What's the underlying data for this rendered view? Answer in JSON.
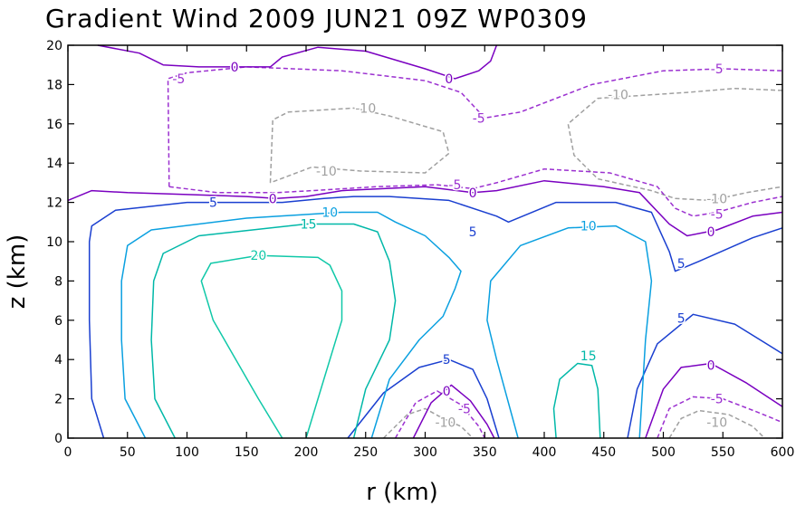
{
  "chart_data": {
    "type": "contour",
    "title": "Gradient Wind 2009 JUN21 09Z  WP0309",
    "xlabel": "r (km)",
    "ylabel": "z (km)",
    "xlim": [
      0,
      600
    ],
    "ylim": [
      0,
      20
    ],
    "xticks": [
      "0",
      "50",
      "100",
      "150",
      "200",
      "250",
      "300",
      "350",
      "400",
      "450",
      "500",
      "550",
      "600"
    ],
    "yticks": [
      "0",
      "2",
      "4",
      "6",
      "8",
      "10",
      "12",
      "14",
      "16",
      "18",
      "20"
    ],
    "contours": [
      {
        "level": -10,
        "color": "#a0a0a0",
        "dashed": true,
        "points": [
          [
            170,
            13.0
          ],
          [
            172,
            16.2
          ],
          [
            185,
            16.6
          ],
          [
            240,
            16.8
          ],
          [
            270,
            16.4
          ],
          [
            315,
            15.6
          ],
          [
            320,
            14.5
          ],
          [
            300,
            13.5
          ],
          [
            245,
            13.6
          ],
          [
            205,
            13.8
          ],
          [
            170,
            13.0
          ]
        ]
      },
      {
        "level": -10,
        "color": "#a0a0a0",
        "dashed": true,
        "points": [
          [
            600,
            17.7
          ],
          [
            560,
            17.8
          ],
          [
            520,
            17.6
          ],
          [
            445,
            17.3
          ],
          [
            420,
            16.0
          ],
          [
            425,
            14.4
          ],
          [
            445,
            13.2
          ],
          [
            490,
            12.6
          ],
          [
            510,
            12.2
          ],
          [
            540,
            12.1
          ],
          [
            570,
            12.5
          ],
          [
            600,
            12.8
          ]
        ]
      },
      {
        "level": -10,
        "color": "#a0a0a0",
        "dashed": true,
        "points": [
          [
            265,
            0
          ],
          [
            285,
            1.2
          ],
          [
            300,
            1.5
          ],
          [
            315,
            1.0
          ],
          [
            330,
            0.6
          ],
          [
            340,
            0
          ]
        ]
      },
      {
        "level": -10,
        "color": "#a0a0a0",
        "dashed": true,
        "points": [
          [
            505,
            0
          ],
          [
            515,
            1.0
          ],
          [
            530,
            1.4
          ],
          [
            555,
            1.2
          ],
          [
            575,
            0.6
          ],
          [
            585,
            0
          ]
        ]
      },
      {
        "level": -5,
        "color": "#9b30d0",
        "dashed": true,
        "points": [
          [
            85,
            12.8
          ],
          [
            84,
            18.3
          ],
          [
            100,
            18.6
          ],
          [
            150,
            18.9
          ],
          [
            230,
            18.7
          ],
          [
            300,
            18.2
          ],
          [
            330,
            17.6
          ],
          [
            350,
            16.3
          ],
          [
            380,
            16.6
          ],
          [
            440,
            18.0
          ],
          [
            500,
            18.7
          ],
          [
            550,
            18.8
          ],
          [
            600,
            18.7
          ]
        ]
      },
      {
        "level": -5,
        "color": "#9b30d0",
        "dashed": true,
        "points": [
          [
            85,
            12.8
          ],
          [
            125,
            12.5
          ],
          [
            175,
            12.5
          ],
          [
            205,
            12.6
          ],
          [
            260,
            12.8
          ],
          [
            310,
            12.9
          ],
          [
            340,
            12.7
          ],
          [
            360,
            13.0
          ],
          [
            400,
            13.7
          ],
          [
            455,
            13.5
          ],
          [
            495,
            12.8
          ],
          [
            510,
            11.7
          ],
          [
            525,
            11.3
          ],
          [
            545,
            11.5
          ],
          [
            575,
            12.0
          ],
          [
            600,
            12.3
          ]
        ]
      },
      {
        "level": -5,
        "color": "#9b30d0",
        "dashed": true,
        "points": [
          [
            275,
            0
          ],
          [
            292,
            1.8
          ],
          [
            310,
            2.4
          ],
          [
            330,
            1.7
          ],
          [
            345,
            0.6
          ],
          [
            350,
            0
          ]
        ]
      },
      {
        "level": -5,
        "color": "#9b30d0",
        "dashed": true,
        "points": [
          [
            495,
            0
          ],
          [
            505,
            1.5
          ],
          [
            525,
            2.1
          ],
          [
            550,
            2.0
          ],
          [
            580,
            1.3
          ],
          [
            600,
            0.8
          ]
        ]
      },
      {
        "level": 0,
        "color": "#7a00c0",
        "dashed": false,
        "points": [
          [
            0,
            12.1
          ],
          [
            20,
            12.6
          ],
          [
            50,
            12.5
          ],
          [
            100,
            12.4
          ],
          [
            150,
            12.3
          ],
          [
            175,
            12.2
          ],
          [
            200,
            12.3
          ],
          [
            230,
            12.6
          ],
          [
            300,
            12.8
          ],
          [
            340,
            12.5
          ],
          [
            360,
            12.6
          ],
          [
            400,
            13.1
          ],
          [
            450,
            12.8
          ],
          [
            480,
            12.5
          ],
          [
            505,
            10.9
          ],
          [
            520,
            10.3
          ],
          [
            545,
            10.6
          ],
          [
            575,
            11.3
          ],
          [
            600,
            11.5
          ]
        ]
      },
      {
        "level": 0,
        "color": "#7a00c0",
        "dashed": false,
        "points": [
          [
            25,
            20
          ],
          [
            60,
            19.6
          ],
          [
            80,
            19.0
          ],
          [
            110,
            18.9
          ],
          [
            170,
            18.9
          ],
          [
            180,
            19.4
          ],
          [
            210,
            19.9
          ],
          [
            250,
            19.7
          ],
          [
            300,
            18.8
          ],
          [
            325,
            18.3
          ],
          [
            345,
            18.7
          ],
          [
            355,
            19.2
          ],
          [
            360,
            20
          ]
        ]
      },
      {
        "level": 0,
        "color": "#7a00c0",
        "dashed": false,
        "points": [
          [
            290,
            0
          ],
          [
            305,
            1.8
          ],
          [
            322,
            2.7
          ],
          [
            338,
            1.9
          ],
          [
            352,
            0.7
          ],
          [
            358,
            0
          ]
        ]
      },
      {
        "level": 0,
        "color": "#7a00c0",
        "dashed": false,
        "points": [
          [
            485,
            0
          ],
          [
            500,
            2.5
          ],
          [
            515,
            3.6
          ],
          [
            540,
            3.8
          ],
          [
            570,
            2.8
          ],
          [
            600,
            1.6
          ]
        ]
      },
      {
        "level": 5,
        "color": "#1a3fd0",
        "dashed": false,
        "points": [
          [
            30,
            0
          ],
          [
            20,
            2.0
          ],
          [
            18,
            6.0
          ],
          [
            18,
            10.0
          ],
          [
            20,
            10.8
          ],
          [
            40,
            11.6
          ],
          [
            100,
            12.0
          ],
          [
            180,
            12.0
          ],
          [
            215,
            12.2
          ],
          [
            240,
            12.3
          ],
          [
            270,
            12.3
          ],
          [
            320,
            12.1
          ],
          [
            360,
            11.3
          ],
          [
            370,
            11.0
          ],
          [
            410,
            12.0
          ],
          [
            460,
            12.0
          ],
          [
            490,
            11.5
          ],
          [
            505,
            9.5
          ],
          [
            510,
            8.5
          ],
          [
            530,
            9.0
          ],
          [
            575,
            10.2
          ],
          [
            600,
            10.7
          ]
        ]
      },
      {
        "level": 5,
        "color": "#1a3fd0",
        "dashed": false,
        "points": [
          [
            235,
            0
          ],
          [
            265,
            2.3
          ],
          [
            295,
            3.6
          ],
          [
            320,
            4.0
          ],
          [
            340,
            3.5
          ],
          [
            352,
            2.0
          ],
          [
            362,
            0
          ]
        ]
      },
      {
        "level": 5,
        "color": "#1a3fd0",
        "dashed": false,
        "points": [
          [
            470,
            0
          ],
          [
            478,
            2.5
          ],
          [
            495,
            4.8
          ],
          [
            525,
            6.3
          ],
          [
            560,
            5.8
          ],
          [
            600,
            4.3
          ]
        ]
      },
      {
        "level": 10,
        "color": "#0aa0e0",
        "dashed": false,
        "points": [
          [
            65,
            0
          ],
          [
            48,
            2.0
          ],
          [
            45,
            5.0
          ],
          [
            45,
            8.0
          ],
          [
            50,
            9.8
          ],
          [
            70,
            10.6
          ],
          [
            150,
            11.2
          ],
          [
            230,
            11.5
          ],
          [
            260,
            11.5
          ],
          [
            275,
            11.0
          ],
          [
            300,
            10.3
          ],
          [
            320,
            9.2
          ],
          [
            330,
            8.5
          ],
          [
            325,
            7.6
          ],
          [
            315,
            6.2
          ],
          [
            295,
            5.0
          ],
          [
            270,
            3.0
          ],
          [
            255,
            0
          ]
        ]
      },
      {
        "level": 10,
        "color": "#0aa0e0",
        "dashed": false,
        "points": [
          [
            378,
            0
          ],
          [
            360,
            4.0
          ],
          [
            352,
            6.0
          ],
          [
            355,
            8.0
          ],
          [
            380,
            9.8
          ],
          [
            420,
            10.7
          ],
          [
            460,
            10.8
          ],
          [
            485,
            10.0
          ],
          [
            490,
            8.0
          ],
          [
            485,
            5.0
          ],
          [
            480,
            0
          ]
        ]
      },
      {
        "level": 15,
        "color": "#00b8a8",
        "dashed": false,
        "points": [
          [
            90,
            0
          ],
          [
            73,
            2.0
          ],
          [
            70,
            5.0
          ],
          [
            72,
            8.0
          ],
          [
            80,
            9.4
          ],
          [
            110,
            10.3
          ],
          [
            200,
            10.9
          ],
          [
            240,
            10.9
          ],
          [
            260,
            10.5
          ],
          [
            270,
            9.0
          ],
          [
            275,
            7.0
          ],
          [
            270,
            5.0
          ],
          [
            250,
            2.5
          ],
          [
            240,
            0
          ]
        ]
      },
      {
        "level": 15,
        "color": "#00b8a8",
        "dashed": false,
        "points": [
          [
            410,
            0
          ],
          [
            408,
            1.5
          ],
          [
            413,
            3.0
          ],
          [
            428,
            3.8
          ],
          [
            440,
            3.7
          ],
          [
            445,
            2.5
          ],
          [
            447,
            0
          ]
        ]
      },
      {
        "level": 20,
        "color": "#10c8a8",
        "dashed": false,
        "points": [
          [
            180,
            0
          ],
          [
            160,
            2.0
          ],
          [
            122,
            6.0
          ],
          [
            112,
            8.0
          ],
          [
            120,
            8.9
          ],
          [
            160,
            9.3
          ],
          [
            210,
            9.2
          ],
          [
            220,
            8.8
          ],
          [
            230,
            7.5
          ],
          [
            230,
            6.0
          ],
          [
            215,
            3.0
          ],
          [
            200,
            0
          ]
        ]
      }
    ],
    "labels": [
      {
        "text": "0",
        "x": 140,
        "y": 18.9,
        "color": "#7a00c0"
      },
      {
        "text": "0",
        "x": 320,
        "y": 18.3,
        "color": "#7a00c0"
      },
      {
        "text": "-5",
        "x": 93,
        "y": 18.3,
        "color": "#9b30d0"
      },
      {
        "text": "-5",
        "x": 545,
        "y": 18.8,
        "color": "#9b30d0"
      },
      {
        "text": "-10",
        "x": 250,
        "y": 16.8,
        "color": "#a0a0a0"
      },
      {
        "text": "-10",
        "x": 462,
        "y": 17.5,
        "color": "#a0a0a0"
      },
      {
        "text": "-5",
        "x": 345,
        "y": 16.3,
        "color": "#9b30d0"
      },
      {
        "text": "-10",
        "x": 217,
        "y": 13.6,
        "color": "#a0a0a0"
      },
      {
        "text": "-5",
        "x": 325,
        "y": 12.9,
        "color": "#9b30d0"
      },
      {
        "text": "-10",
        "x": 545,
        "y": 12.2,
        "color": "#a0a0a0"
      },
      {
        "text": "0",
        "x": 172,
        "y": 12.2,
        "color": "#7a00c0"
      },
      {
        "text": "0",
        "x": 340,
        "y": 12.5,
        "color": "#7a00c0"
      },
      {
        "text": "-5",
        "x": 545,
        "y": 11.4,
        "color": "#9b30d0"
      },
      {
        "text": "0",
        "x": 540,
        "y": 10.5,
        "color": "#7a00c0"
      },
      {
        "text": "5",
        "x": 122,
        "y": 12.0,
        "color": "#1a3fd0"
      },
      {
        "text": "10",
        "x": 220,
        "y": 11.5,
        "color": "#0aa0e0"
      },
      {
        "text": "5",
        "x": 340,
        "y": 10.5,
        "color": "#1a3fd0"
      },
      {
        "text": "10",
        "x": 437,
        "y": 10.8,
        "color": "#0aa0e0"
      },
      {
        "text": "15",
        "x": 202,
        "y": 10.9,
        "color": "#00b8a8"
      },
      {
        "text": "5",
        "x": 515,
        "y": 8.9,
        "color": "#1a3fd0"
      },
      {
        "text": "20",
        "x": 160,
        "y": 9.3,
        "color": "#10c8a8"
      },
      {
        "text": "5",
        "x": 515,
        "y": 6.1,
        "color": "#1a3fd0"
      },
      {
        "text": "15",
        "x": 437,
        "y": 4.2,
        "color": "#00b8a8"
      },
      {
        "text": "5",
        "x": 318,
        "y": 4.0,
        "color": "#1a3fd0"
      },
      {
        "text": "0",
        "x": 540,
        "y": 3.7,
        "color": "#7a00c0"
      },
      {
        "text": "0",
        "x": 318,
        "y": 2.4,
        "color": "#7a00c0"
      },
      {
        "text": "-5",
        "x": 545,
        "y": 2.0,
        "color": "#9b30d0"
      },
      {
        "text": "-5",
        "x": 333,
        "y": 1.5,
        "color": "#9b30d0"
      },
      {
        "text": "-10",
        "x": 317,
        "y": 0.8,
        "color": "#a0a0a0"
      },
      {
        "text": "-10",
        "x": 545,
        "y": 0.8,
        "color": "#a0a0a0"
      }
    ]
  }
}
